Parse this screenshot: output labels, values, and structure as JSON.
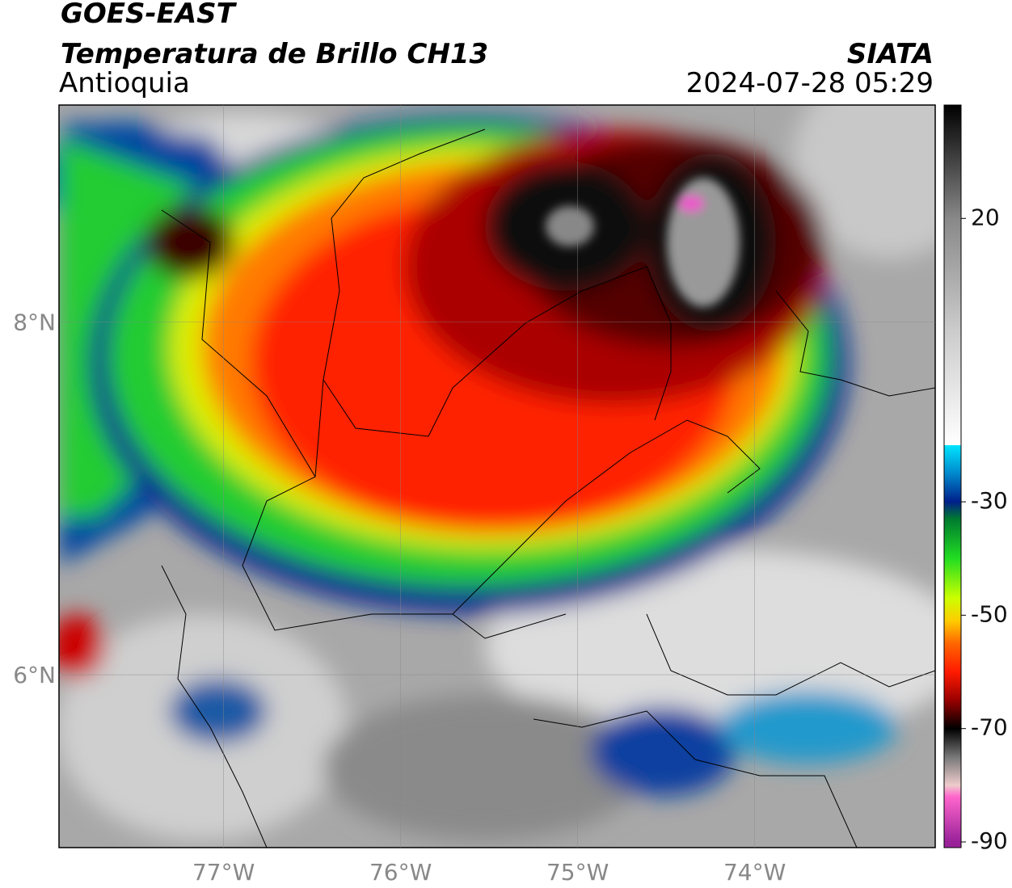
{
  "header": {
    "title": "GOES-EAST",
    "subtitle": "Temperatura de Brillo CH13",
    "region": "Antioquia",
    "source": "SIATA",
    "datetime": "2024-07-28 05:29"
  },
  "chart_data": {
    "type": "map",
    "xlim": [
      -77.93,
      -72.98
    ],
    "ylim": [
      5.02,
      9.23
    ],
    "xticks": [
      {
        "value": -77,
        "label": "77°W"
      },
      {
        "value": -76,
        "label": "76°W"
      },
      {
        "value": -75,
        "label": "75°W"
      },
      {
        "value": -74,
        "label": "74°W"
      }
    ],
    "yticks": [
      {
        "value": 6,
        "label": "6°N"
      },
      {
        "value": 8,
        "label": "8°N"
      }
    ],
    "grid": true,
    "colorbar": {
      "clim": [
        -91,
        40
      ],
      "ticks": [
        20,
        -30,
        -50,
        -70,
        -90
      ],
      "colorscale": [
        [
          40,
          "#000000"
        ],
        [
          30,
          "#444444"
        ],
        [
          20,
          "#888888"
        ],
        [
          0,
          "#cccccc"
        ],
        [
          -20,
          "#ffffff"
        ],
        [
          -20.01,
          "#00e5ff"
        ],
        [
          -25,
          "#0088cc"
        ],
        [
          -30,
          "#001f8a"
        ],
        [
          -33,
          "#007a30"
        ],
        [
          -40,
          "#22dd22"
        ],
        [
          -47,
          "#ccff00"
        ],
        [
          -51,
          "#ffcc00"
        ],
        [
          -55,
          "#ff6600"
        ],
        [
          -60,
          "#ff1a00"
        ],
        [
          -65,
          "#990000"
        ],
        [
          -70,
          "#000000"
        ],
        [
          -75,
          "#777777"
        ],
        [
          -80,
          "#eecccc"
        ],
        [
          -82,
          "#ff66cc"
        ],
        [
          -90,
          "#992299"
        ]
      ]
    }
  }
}
